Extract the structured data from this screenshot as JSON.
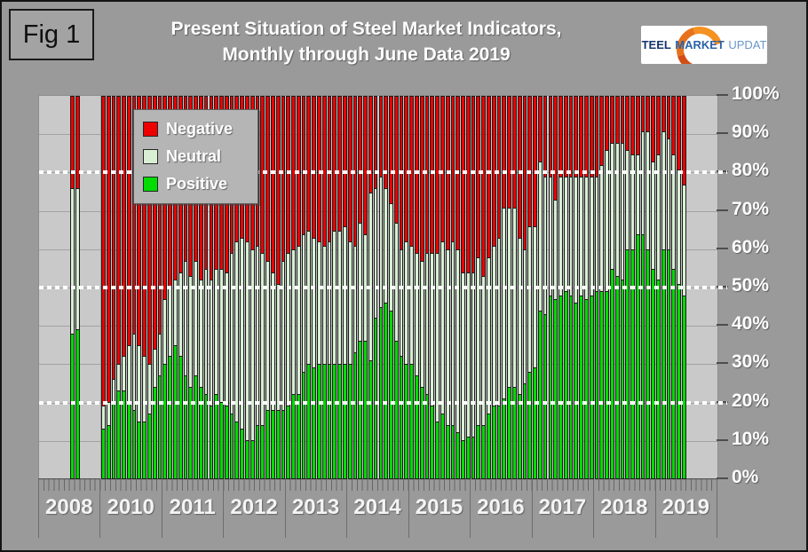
{
  "figure_label": "Fig 1",
  "header": {
    "title_line1": "Present Situation of Steel Market Indicators,",
    "title_line2": "Monthly through June Data 2019"
  },
  "logo": {
    "word1": "STEEL",
    "word2": "MARKET",
    "word3": "UPDATE",
    "crescent_color": "#E8721C"
  },
  "legend": [
    {
      "label": "Negative",
      "color": "#EC0000"
    },
    {
      "label": "Neutral",
      "color": "#D8EFD4"
    },
    {
      "label": "Positive",
      "color": "#00DC00"
    }
  ],
  "y_axis": {
    "tick_labels": [
      "100%",
      "90%",
      "80%",
      "70%",
      "60%",
      "50%",
      "40%",
      "30%",
      "20%",
      "10%",
      "0%"
    ]
  },
  "x_axis": {
    "year_labels": [
      "2008",
      "2010",
      "2011",
      "2012",
      "2013",
      "2014",
      "2015",
      "2016",
      "2017",
      "2018",
      "2019"
    ]
  },
  "colors": {
    "page_bg": "#9a9a9a",
    "plot_bg": "#c9c9c9",
    "grid": "#a2a2a2",
    "negative": "#EC0000",
    "neutral": "#D8EFD4",
    "positive": "#00DC00",
    "bar_border": "#1d1d1d",
    "text": "#ffffff",
    "reference_line": "#ffffff"
  },
  "chart_data": {
    "type": "bar",
    "stacked": true,
    "title": "Present Situation of Steel Market Indicators, Monthly through June Data 2019",
    "x_unit": "month",
    "ylim": [
      0,
      100
    ],
    "grid": true,
    "legend_position": "top-left-inside",
    "dotted_reference_lines_pct": [
      80,
      50,
      20
    ],
    "series_order_bottom_to_top": [
      "Positive",
      "Neutral",
      "Negative"
    ],
    "note": "Values are percent of respondents. Negative = 100 - positive - neutral for every bar. first_month_slot is the 0-based slot within the year group where the listed months begin (2008 survey data starts mid-group; 2019 has Jan-Jun only).",
    "years": [
      {
        "year": "2008",
        "first_month_slot": 6,
        "positive": [
          38,
          39
        ],
        "neutral": [
          38,
          37
        ]
      },
      {
        "year": "2010",
        "first_month_slot": 0,
        "positive": [
          13,
          14,
          20,
          23,
          23,
          20,
          18,
          15,
          15,
          17,
          24,
          27
        ],
        "neutral": [
          6,
          6,
          6,
          7,
          9,
          15,
          20,
          20,
          17,
          13,
          10,
          11
        ]
      },
      {
        "year": "2011",
        "first_month_slot": 0,
        "positive": [
          30,
          32,
          35,
          32,
          27,
          24,
          27,
          24,
          22,
          19,
          22,
          20
        ],
        "neutral": [
          17,
          18,
          17,
          22,
          30,
          29,
          30,
          28,
          33,
          33,
          33,
          35
        ]
      },
      {
        "year": "2012",
        "first_month_slot": 0,
        "positive": [
          19,
          17,
          15,
          13,
          10,
          10,
          14,
          14,
          18,
          18,
          18,
          18
        ],
        "neutral": [
          35,
          42,
          47,
          50,
          52,
          50,
          47,
          45,
          39,
          36,
          33,
          39
        ]
      },
      {
        "year": "2013",
        "first_month_slot": 0,
        "positive": [
          19,
          22,
          22,
          28,
          30,
          29,
          30,
          30,
          30,
          30,
          30,
          30
        ],
        "neutral": [
          40,
          38,
          39,
          36,
          35,
          34,
          32,
          31,
          32,
          35,
          35,
          36
        ]
      },
      {
        "year": "2014",
        "first_month_slot": 0,
        "positive": [
          30,
          33,
          36,
          36,
          31,
          42,
          45,
          46,
          44,
          36,
          32,
          30
        ],
        "neutral": [
          32,
          28,
          31,
          28,
          44,
          34,
          34,
          30,
          28,
          31,
          28,
          32
        ]
      },
      {
        "year": "2015",
        "first_month_slot": 0,
        "positive": [
          30,
          27,
          24,
          22,
          19,
          15,
          17,
          14,
          14,
          12,
          10,
          11
        ],
        "neutral": [
          31,
          32,
          33,
          37,
          40,
          44,
          45,
          46,
          48,
          48,
          44,
          43
        ]
      },
      {
        "year": "2016",
        "first_month_slot": 0,
        "positive": [
          11,
          14,
          14,
          17,
          19,
          19,
          21,
          24,
          24,
          22,
          25,
          28
        ],
        "neutral": [
          43,
          44,
          39,
          41,
          42,
          44,
          50,
          47,
          47,
          41,
          35,
          38
        ]
      },
      {
        "year": "2017",
        "first_month_slot": 0,
        "positive": [
          29,
          44,
          43,
          48,
          47,
          48,
          49,
          48,
          46,
          48,
          47,
          48
        ],
        "neutral": [
          37,
          39,
          36,
          31,
          26,
          31,
          30,
          31,
          33,
          31,
          32,
          31
        ]
      },
      {
        "year": "2018",
        "first_month_slot": 0,
        "positive": [
          49,
          49,
          49,
          55,
          53,
          52,
          60,
          60,
          64,
          64,
          60,
          55
        ],
        "neutral": [
          30,
          33,
          37,
          33,
          35,
          36,
          26,
          25,
          21,
          27,
          31,
          28
        ]
      },
      {
        "year": "2019",
        "first_month_slot": 0,
        "positive": [
          52,
          60,
          60,
          55,
          51,
          48
        ],
        "neutral": [
          33,
          31,
          29,
          30,
          30,
          29
        ]
      }
    ]
  }
}
